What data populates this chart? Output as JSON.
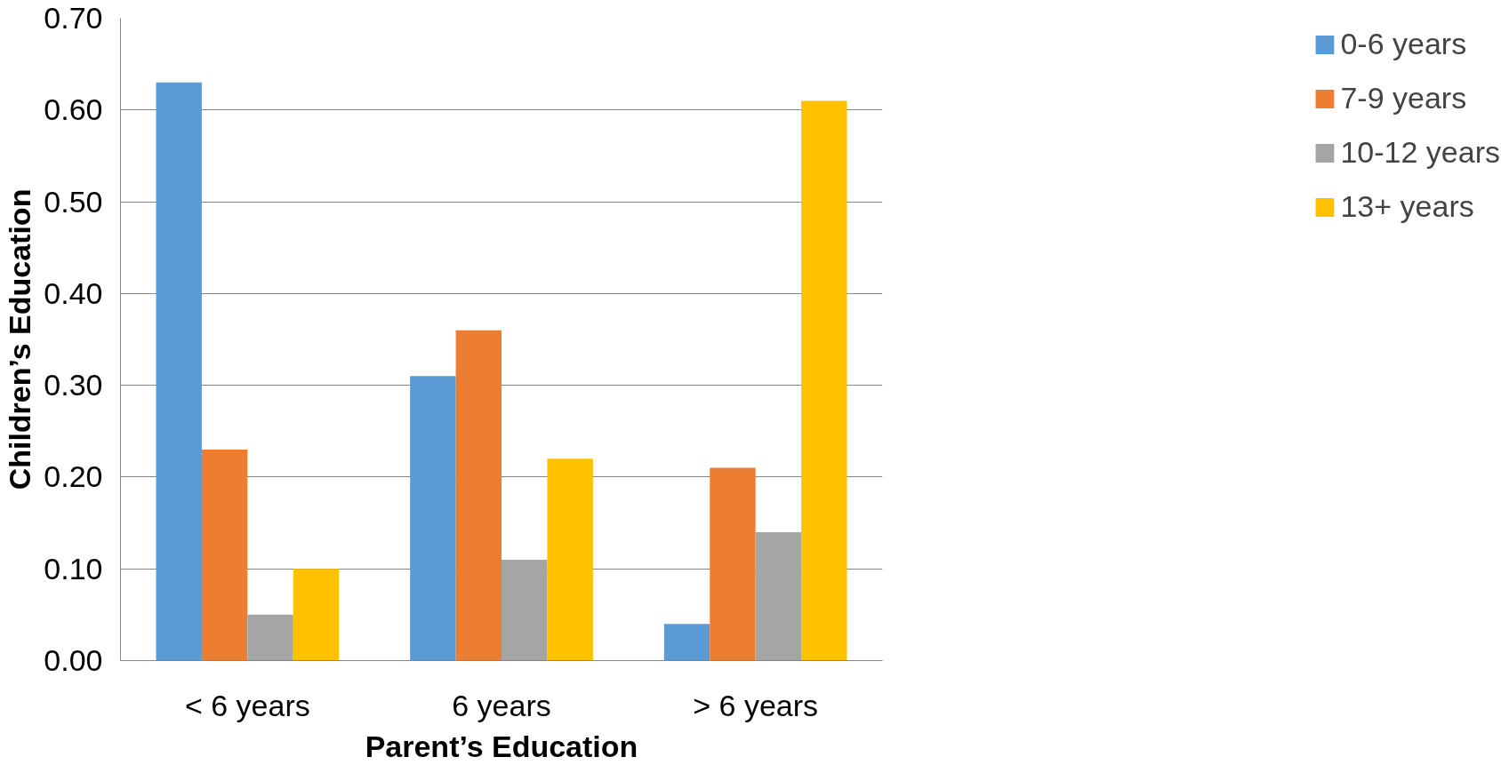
{
  "chart_data": {
    "type": "bar",
    "xlabel": "Parent’s Education",
    "ylabel": "Children’s Education",
    "categories": [
      "< 6 years",
      "6 years",
      "> 6 years"
    ],
    "series": [
      {
        "name": "0-6 years",
        "color": "#5b9bd5",
        "values": [
          0.63,
          0.31,
          0.04
        ]
      },
      {
        "name": "7-9 years",
        "color": "#ed7d31",
        "values": [
          0.23,
          0.36,
          0.21
        ]
      },
      {
        "name": "10-12 years",
        "color": "#a5a5a5",
        "values": [
          0.05,
          0.11,
          0.14
        ]
      },
      {
        "name": "13+ years",
        "color": "#ffc000",
        "values": [
          0.1,
          0.22,
          0.61
        ]
      }
    ],
    "ylim": [
      0,
      0.7
    ],
    "yticks": [
      {
        "value": 0,
        "label": "0.00"
      },
      {
        "value": 0.1,
        "label": "0.10"
      },
      {
        "value": 0.2,
        "label": "0.20"
      },
      {
        "value": 0.3,
        "label": "0.30"
      },
      {
        "value": 0.4,
        "label": "0.40"
      },
      {
        "value": 0.5,
        "label": "0.50"
      },
      {
        "value": 0.6,
        "label": "0.60"
      },
      {
        "value": 0.7,
        "label": "0.70"
      }
    ],
    "grid": "y",
    "legend": "right"
  }
}
